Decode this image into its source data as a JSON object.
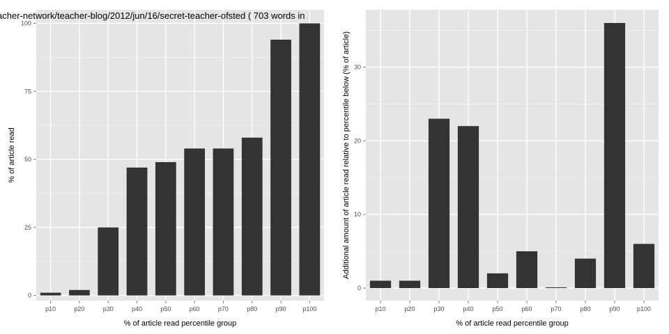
{
  "colors": {
    "panel_bg": "#e5e5e5",
    "grid_major": "#ffffff",
    "grid_minor": "#f2f2f2",
    "bar_fill": "#333333",
    "tick_mark": "#7f7f7f"
  },
  "chart_data": [
    {
      "type": "bar",
      "title": "acher-network/teacher-blog/2012/jun/16/secret-teacher-ofsted ( 703 words in",
      "xlabel": "% of article read percentile group",
      "ylabel": "% of article read",
      "categories": [
        "p10",
        "p20",
        "p30",
        "p40",
        "p50",
        "p60",
        "p70",
        "p80",
        "p90",
        "p100"
      ],
      "values": [
        1,
        2,
        25,
        47,
        49,
        54,
        54,
        58,
        94,
        100
      ],
      "ylim": [
        -1.9,
        105
      ],
      "yticks": [
        0,
        25,
        50,
        75,
        100
      ],
      "grid": true
    },
    {
      "type": "bar",
      "title": "",
      "xlabel": "% of article read percentile group",
      "ylabel": "Additional amount of article read relative to percentile below (% of article)",
      "categories": [
        "p10",
        "p20",
        "p30",
        "p40",
        "p50",
        "p60",
        "p70",
        "p80",
        "p90",
        "p100"
      ],
      "values": [
        1,
        1,
        23,
        22,
        2,
        5,
        0.1,
        4,
        36,
        6
      ],
      "ylim": [
        -1.7,
        37.8
      ],
      "yticks": [
        0,
        10,
        20,
        30
      ],
      "grid": true
    }
  ]
}
